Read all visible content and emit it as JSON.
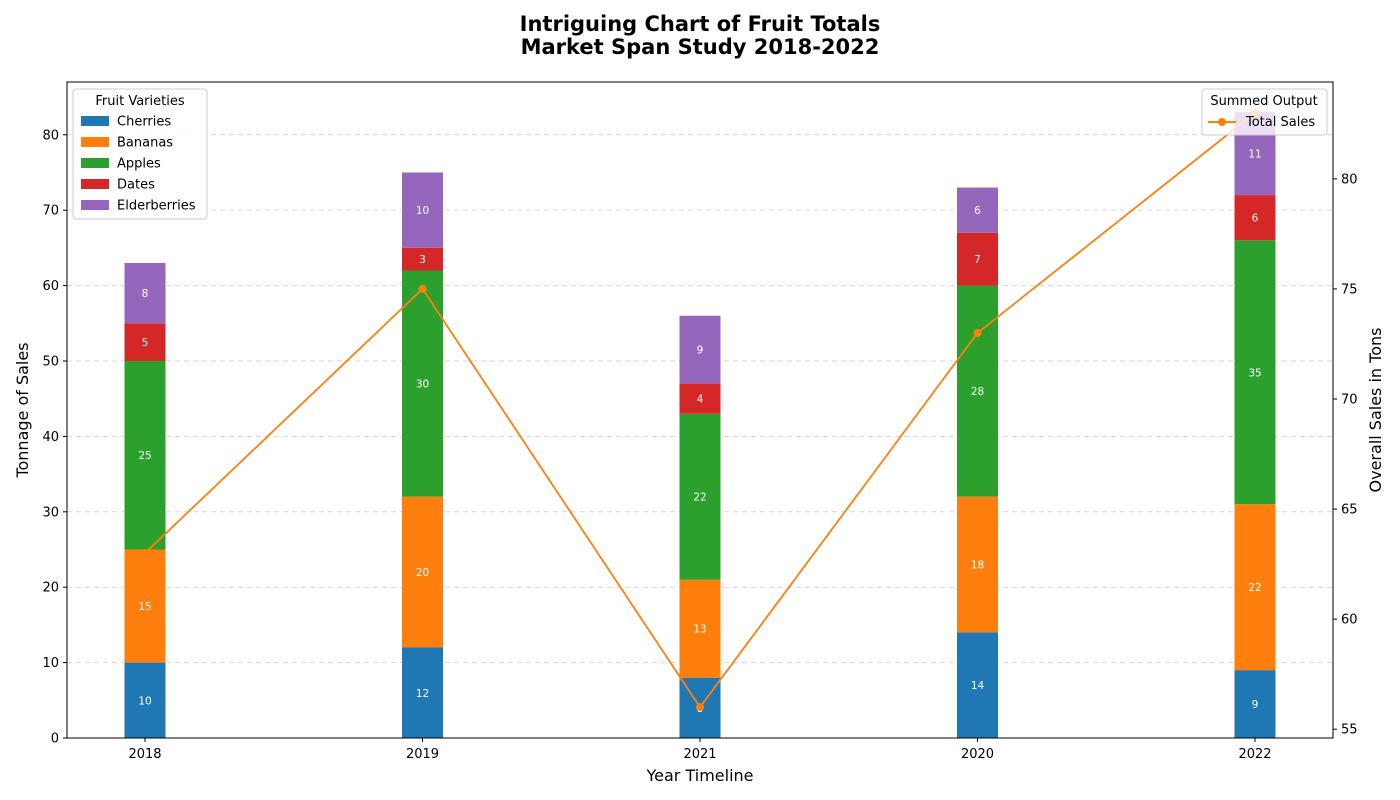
{
  "chart_data": {
    "type": "bar",
    "stacked": true,
    "title_lines": [
      "Intriguing Chart of Fruit Totals",
      "Market Span Study 2018-2022"
    ],
    "xlabel": "Year Timeline",
    "ylabel": "Tonnage of Sales",
    "y2label": "Overall Sales in Tons",
    "categories": [
      "2018",
      "2019",
      "2021",
      "2020",
      "2022"
    ],
    "ylim": [
      0,
      87
    ],
    "yticks": [
      0,
      10,
      20,
      30,
      40,
      50,
      60,
      70,
      80
    ],
    "y2lim": [
      54.6,
      84.4
    ],
    "y2ticks": [
      55,
      60,
      65,
      70,
      75,
      80
    ],
    "grid": "horizontal dashed",
    "series": [
      {
        "name": "Cherries",
        "color": "#1f77b4",
        "values": [
          10,
          12,
          8,
          14,
          9
        ]
      },
      {
        "name": "Bananas",
        "color": "#ff7f0e",
        "values": [
          15,
          20,
          13,
          18,
          22
        ]
      },
      {
        "name": "Apples",
        "color": "#2ca02c",
        "values": [
          25,
          30,
          22,
          28,
          35
        ]
      },
      {
        "name": "Dates",
        "color": "#d62728",
        "values": [
          5,
          3,
          4,
          7,
          6
        ]
      },
      {
        "name": "Elderberries",
        "color": "#9467bd",
        "values": [
          8,
          10,
          9,
          6,
          11
        ]
      }
    ],
    "line_series": {
      "name": "Total Sales",
      "color": "#ff7f0e",
      "axis": "right",
      "values": [
        63,
        75,
        56,
        73,
        83
      ]
    },
    "legend_left": {
      "title": "Fruit Varieties",
      "placement": "top-left"
    },
    "legend_right": {
      "title": "Summed Output",
      "placement": "top-right"
    }
  }
}
